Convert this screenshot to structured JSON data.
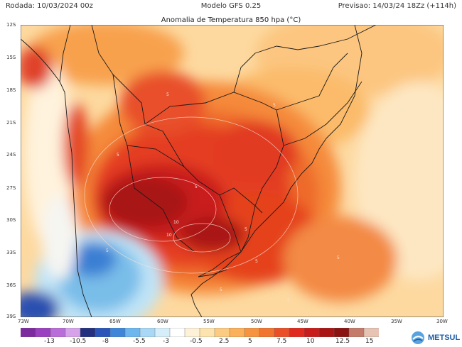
{
  "header": {
    "run": "Rodada: 10/03/2024 00z",
    "model": "Modelo GFS 0.25",
    "forecast": "Previsao: 14/03/24 18Zz (+114h)"
  },
  "subtitle": "Anomalia de Temperatura 850 hpa (°C)",
  "lat_labels": [
    "12S",
    "15S",
    "18S",
    "21S",
    "24S",
    "27S",
    "30S",
    "33S",
    "36S",
    "39S"
  ],
  "lon_labels": [
    "73W",
    "70W",
    "65W",
    "60W",
    "55W",
    "50W",
    "45W",
    "40W",
    "35W",
    "30W"
  ],
  "contours": [
    "5",
    "5",
    "5",
    "10",
    "10",
    "5",
    "5",
    "5",
    "5",
    "5",
    "5",
    "5"
  ],
  "colorbar": {
    "ticks": [
      "-13",
      "-10.5",
      "-8",
      "-5.5",
      "-3",
      "-0.5",
      "2.5",
      "5",
      "7.5",
      "10",
      "12.5",
      "15"
    ],
    "colors": [
      "#7c2a9e",
      "#9b40c0",
      "#b86dd8",
      "#d6a3ea",
      "#23317f",
      "#2b55b8",
      "#3f86d9",
      "#6db6ee",
      "#a8d8f5",
      "#d6eefa",
      "#ffffff",
      "#fdf2d8",
      "#fde3ad",
      "#fccb82",
      "#fbb05a",
      "#f69340",
      "#f1742f",
      "#ea4f27",
      "#e02a1f",
      "#c81b1b",
      "#a91515",
      "#8a1212",
      "#c47b6a",
      "#e7c3b4"
    ]
  },
  "logo": {
    "name": "METSUL"
  }
}
